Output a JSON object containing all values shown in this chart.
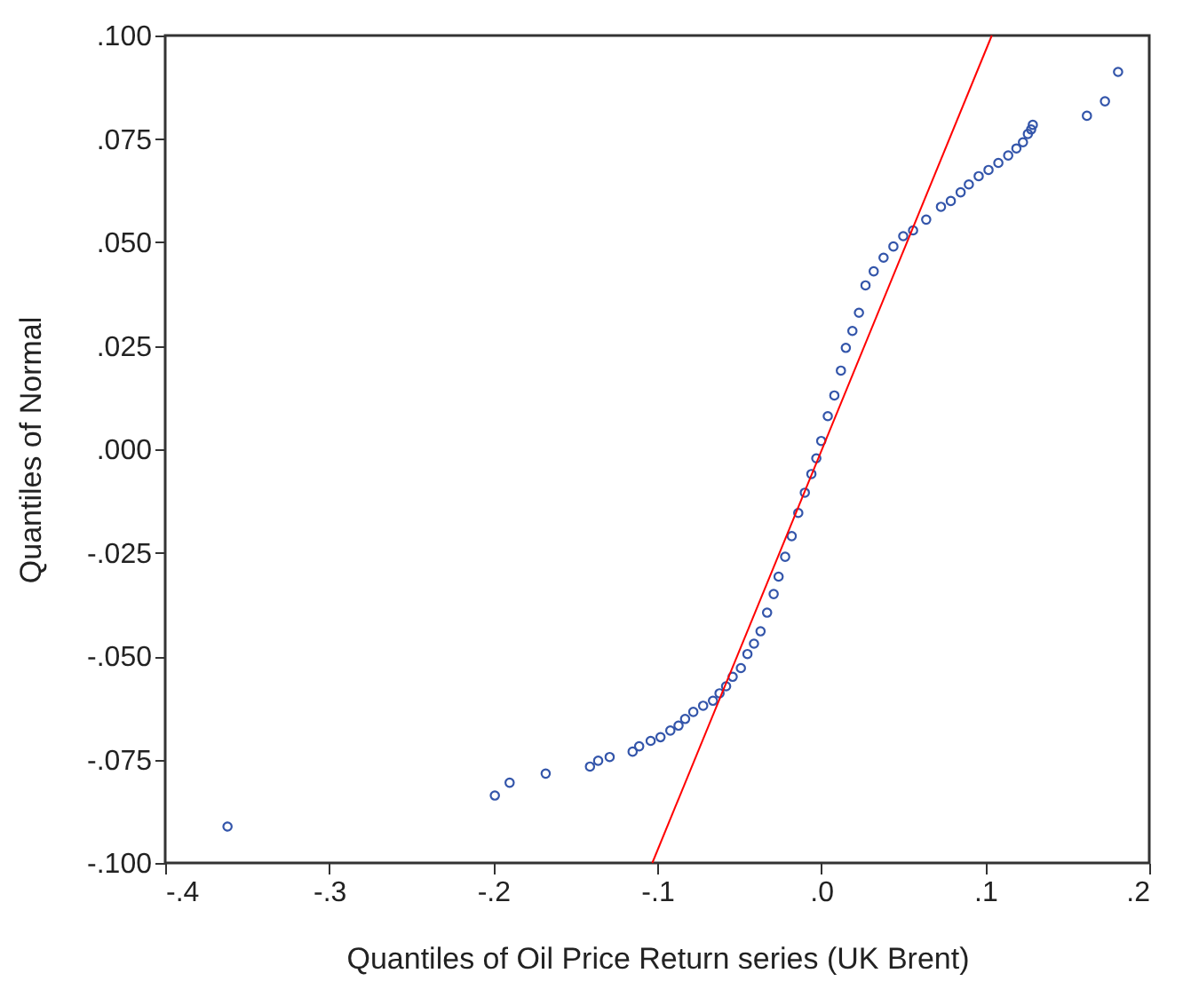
{
  "chart_data": {
    "type": "scatter",
    "xlabel": "Quantiles of Oil Price Return series (UK Brent)",
    "ylabel": "Quantiles of Normal",
    "xlim": [
      -0.4,
      0.2
    ],
    "ylim": [
      -0.1,
      0.1
    ],
    "xticks": [
      {
        "value": -0.4,
        "label": "-.4"
      },
      {
        "value": -0.3,
        "label": "-.3"
      },
      {
        "value": -0.2,
        "label": "-.2"
      },
      {
        "value": -0.1,
        "label": "-.1"
      },
      {
        "value": 0,
        "label": ".0"
      },
      {
        "value": 0.1,
        "label": ".1"
      },
      {
        "value": 0.2,
        "label": ".2"
      }
    ],
    "yticks": [
      {
        "value": -0.1,
        "label": "-.100"
      },
      {
        "value": -0.075,
        "label": "-.075"
      },
      {
        "value": -0.05,
        "label": "-.050"
      },
      {
        "value": -0.025,
        "label": "-.025"
      },
      {
        "value": 0,
        "label": ".000"
      },
      {
        "value": 0.025,
        "label": ".025"
      },
      {
        "value": 0.05,
        "label": ".050"
      },
      {
        "value": 0.075,
        "label": ".075"
      },
      {
        "value": 0.1,
        "label": ".100"
      }
    ],
    "grid": false,
    "series": [
      {
        "type": "scatter",
        "color": "#3355aa",
        "marker": "circle",
        "x": [
          -0.362,
          -0.199,
          -0.19,
          -0.168,
          -0.141,
          -0.136,
          -0.129,
          -0.115,
          -0.111,
          -0.104,
          -0.098,
          -0.092,
          -0.087,
          -0.083,
          -0.078,
          -0.072,
          -0.066,
          -0.062,
          -0.058,
          -0.054,
          -0.049,
          -0.045,
          -0.041,
          -0.037,
          -0.033,
          -0.029,
          -0.026,
          -0.022,
          -0.018,
          -0.014,
          -0.01,
          -0.006,
          -0.003,
          0.0,
          0.004,
          0.008,
          0.012,
          0.015,
          0.019,
          0.023,
          0.027,
          0.032,
          0.038,
          0.044,
          0.05,
          0.056,
          0.064,
          0.073,
          0.079,
          0.085,
          0.09,
          0.096,
          0.102,
          0.108,
          0.114,
          0.119,
          0.123,
          0.126,
          0.128,
          0.129,
          0.162,
          0.173,
          0.181
        ],
        "values": [
          -0.0912,
          -0.0837,
          -0.0806,
          -0.0784,
          -0.0767,
          -0.0753,
          -0.0744,
          -0.0731,
          -0.0718,
          -0.0705,
          -0.0696,
          -0.068,
          -0.0668,
          -0.0652,
          -0.0635,
          -0.062,
          -0.0608,
          -0.059,
          -0.0573,
          -0.055,
          -0.0529,
          -0.0495,
          -0.047,
          -0.044,
          -0.0395,
          -0.035,
          -0.0308,
          -0.026,
          -0.021,
          -0.0154,
          -0.0105,
          -0.006,
          -0.0022,
          0.002,
          0.008,
          0.013,
          0.019,
          0.0245,
          0.0286,
          0.033,
          0.0396,
          0.043,
          0.0463,
          0.049,
          0.0515,
          0.0529,
          0.0555,
          0.0586,
          0.06,
          0.0621,
          0.064,
          0.066,
          0.0675,
          0.0692,
          0.071,
          0.0727,
          0.0742,
          0.0762,
          0.0773,
          0.0784,
          0.0806,
          0.0841,
          0.0912
        ]
      },
      {
        "type": "line",
        "color": "#ff0000",
        "marker": "none",
        "line_style": "solid",
        "x": [
          -0.103,
          0.104
        ],
        "values": [
          -0.1,
          0.1
        ]
      }
    ]
  }
}
